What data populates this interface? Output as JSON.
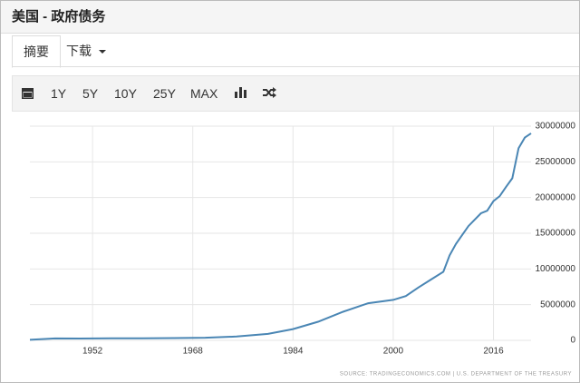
{
  "header": {
    "title": "美国 - 政府债务",
    "tabs": [
      "摘要",
      "下载"
    ],
    "toolbar": [
      "1Y",
      "5Y",
      "10Y",
      "25Y",
      "MAX"
    ]
  },
  "chart_data": {
    "type": "line",
    "source": "SOURCE: TRADINGECONOMICS.COM | U.S. DEPARTMENT OF THE TREASURY",
    "x": [
      1942,
      1946,
      1950,
      1955,
      1960,
      1965,
      1970,
      1975,
      1980,
      1984,
      1988,
      1992,
      1996,
      2000,
      2002,
      2004,
      2006,
      2008,
      2009,
      2010,
      2012,
      2014,
      2015,
      2016,
      2017,
      2018,
      2019,
      2020,
      2021,
      2022
    ],
    "series": [
      {
        "name": "政府债务",
        "color": "#4a86b4",
        "values": [
          72000,
          270000,
          257000,
          274000,
          290000,
          320000,
          370000,
          530000,
          908000,
          1570000,
          2600000,
          4000000,
          5200000,
          5670000,
          6200000,
          7400000,
          8500000,
          9600000,
          11900000,
          13500000,
          16000000,
          17800000,
          18150000,
          19500000,
          20200000,
          21500000,
          22700000,
          26900000,
          28400000,
          29000000
        ]
      }
    ],
    "xlim": [
      1942,
      2022
    ],
    "xticks": [
      1952,
      1968,
      1984,
      2000,
      2016
    ],
    "ylim": [
      0,
      30000000
    ],
    "yticks": [
      0,
      5000000,
      10000000,
      15000000,
      20000000,
      25000000,
      30000000
    ],
    "grid": true
  }
}
